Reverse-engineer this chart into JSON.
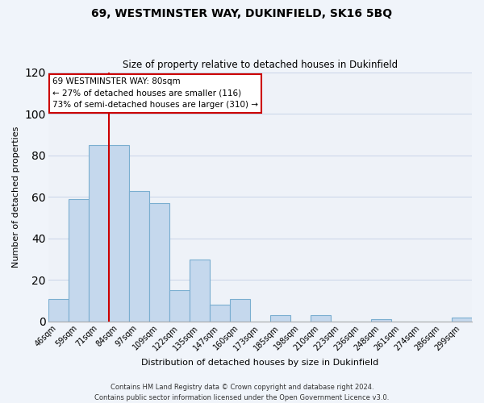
{
  "title": "69, WESTMINSTER WAY, DUKINFIELD, SK16 5BQ",
  "subtitle": "Size of property relative to detached houses in Dukinfield",
  "xlabel": "Distribution of detached houses by size in Dukinfield",
  "ylabel": "Number of detached properties",
  "bar_labels": [
    "46sqm",
    "59sqm",
    "71sqm",
    "84sqm",
    "97sqm",
    "109sqm",
    "122sqm",
    "135sqm",
    "147sqm",
    "160sqm",
    "173sqm",
    "185sqm",
    "198sqm",
    "210sqm",
    "223sqm",
    "236sqm",
    "248sqm",
    "261sqm",
    "274sqm",
    "286sqm",
    "299sqm"
  ],
  "bar_values": [
    11,
    59,
    85,
    85,
    63,
    57,
    15,
    30,
    8,
    11,
    0,
    3,
    0,
    3,
    0,
    0,
    1,
    0,
    0,
    0,
    2
  ],
  "bar_color": "#c5d8ed",
  "bar_edge_color": "#7aaed0",
  "vline_color": "#cc0000",
  "vline_x_idx": 3,
  "ylim": [
    0,
    120
  ],
  "yticks": [
    0,
    20,
    40,
    60,
    80,
    100,
    120
  ],
  "annotation_title": "69 WESTMINSTER WAY: 80sqm",
  "annotation_line1": "← 27% of detached houses are smaller (116)",
  "annotation_line2": "73% of semi-detached houses are larger (310) →",
  "annotation_box_facecolor": "#ffffff",
  "annotation_box_edgecolor": "#cc0000",
  "footer_line1": "Contains HM Land Registry data © Crown copyright and database right 2024.",
  "footer_line2": "Contains public sector information licensed under the Open Government Licence v3.0.",
  "background_color": "#f0f4fa",
  "plot_background_color": "#eef2f8",
  "grid_color": "#c8d4e8",
  "title_fontsize": 10,
  "subtitle_fontsize": 8.5,
  "ylabel_fontsize": 8,
  "xlabel_fontsize": 8,
  "tick_fontsize": 7,
  "annotation_fontsize": 7.5,
  "footer_fontsize": 6
}
